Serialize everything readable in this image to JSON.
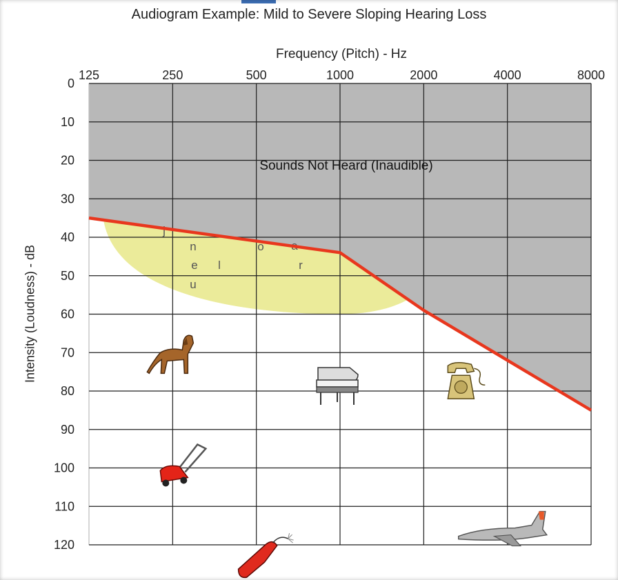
{
  "chart_data": {
    "type": "line",
    "title": "Audiogram Example: Mild to Severe Sloping Hearing Loss",
    "xlabel": "Frequency (Pitch) - Hz",
    "ylabel": "Intensity (Loudness) - dB",
    "x_scale": "log2",
    "x_ticks": [
      125,
      250,
      500,
      1000,
      2000,
      4000,
      8000
    ],
    "x_tick_labels": [
      "125",
      "250",
      "500",
      "1000",
      "2000",
      "4000",
      "8000"
    ],
    "y_ticks": [
      0,
      10,
      20,
      30,
      40,
      50,
      60,
      70,
      80,
      90,
      100,
      110,
      120
    ],
    "y_tick_labels": [
      "0",
      "10",
      "20",
      "30",
      "40",
      "50",
      "60",
      "70",
      "80",
      "90",
      "100",
      "110",
      "120"
    ],
    "ylim": [
      0,
      120
    ],
    "y_inverted": true,
    "x_axis_position": "top",
    "grid": true,
    "series": [
      {
        "x": [
          125,
          250,
          500,
          1000,
          2000,
          4000,
          8000
        ],
        "values": [
          35,
          38,
          41,
          44,
          59,
          72,
          85
        ],
        "color": "#e8371e"
      }
    ],
    "shaded_region": {
      "label": "Sounds Not Heard (Inaudible)",
      "color": "#b8b8b8"
    },
    "speech_banana": {
      "color": "#e9e98f",
      "letters": [
        "j",
        "n",
        "e",
        "l",
        "u",
        "o",
        "a",
        "r"
      ]
    },
    "icons": [
      {
        "name": "dog-icon",
        "x": 250,
        "y": 72
      },
      {
        "name": "piano-icon",
        "x": 1000,
        "y": 80
      },
      {
        "name": "telephone-icon",
        "x": 3000,
        "y": 77
      },
      {
        "name": "lawn-mower-icon",
        "x": 250,
        "y": 100
      },
      {
        "name": "chainsaw-icon",
        "x": 600,
        "y": 122
      },
      {
        "name": "jet-plane-icon",
        "x": 5000,
        "y": 121
      }
    ]
  }
}
